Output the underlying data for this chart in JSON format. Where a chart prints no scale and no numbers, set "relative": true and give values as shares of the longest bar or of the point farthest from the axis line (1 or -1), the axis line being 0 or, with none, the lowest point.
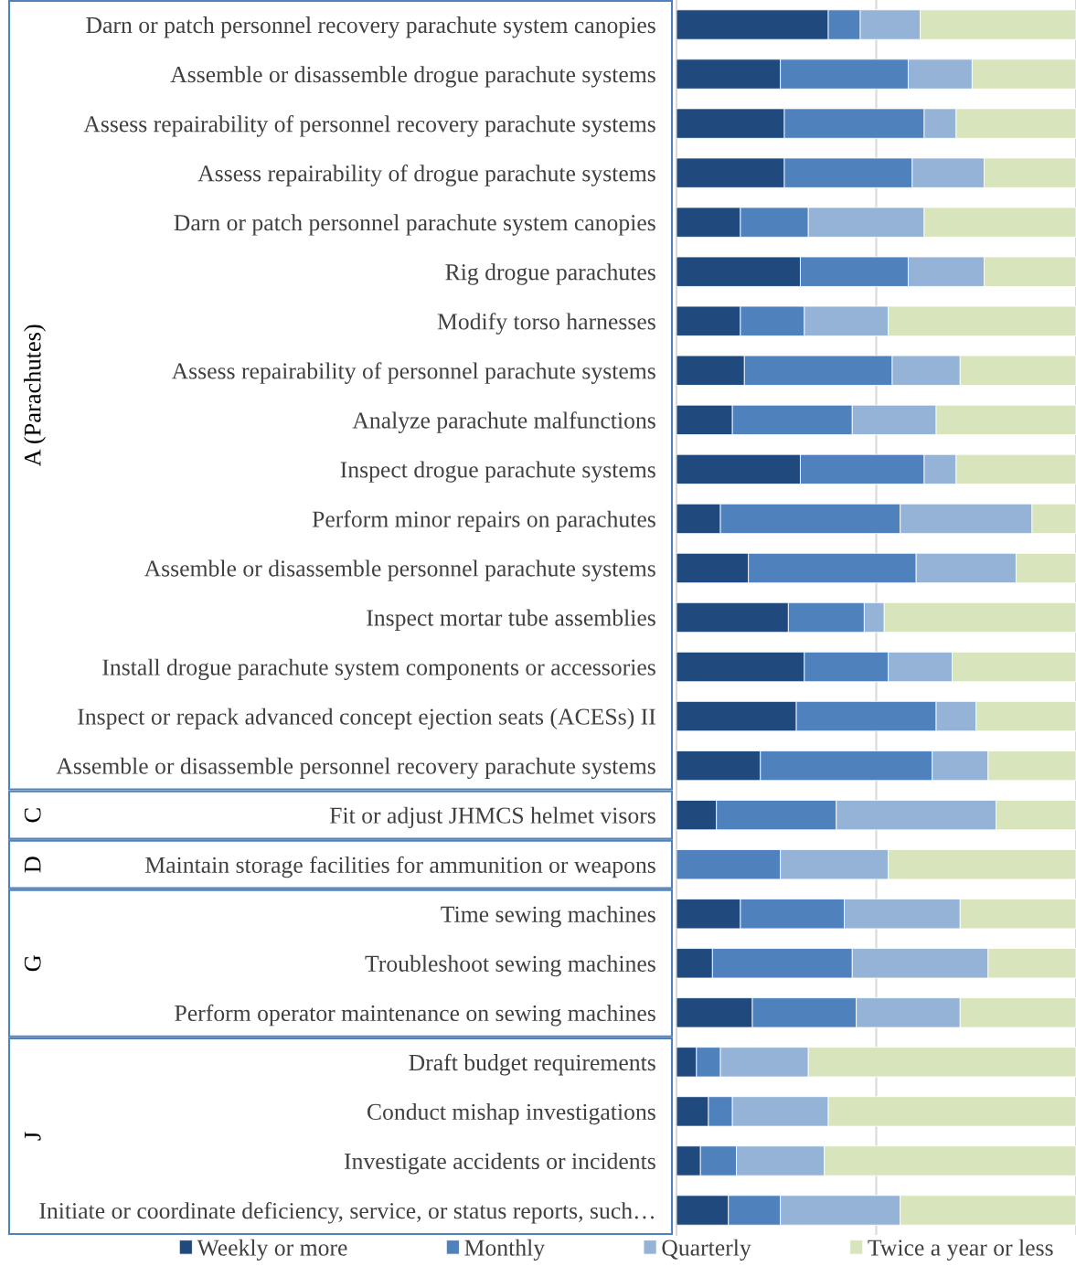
{
  "chart_data": {
    "type": "bar",
    "orientation": "horizontal",
    "stacked": true,
    "relative": true,
    "legend": "bottom",
    "categories": [
      "Darn or patch personnel recovery parachute system canopies",
      "Assemble or disassemble drogue parachute systems",
      "Assess repairability of personnel recovery parachute systems",
      "Assess repairability of drogue parachute systems",
      "Darn or patch personnel parachute system canopies",
      "Rig drogue parachutes",
      "Modify torso harnesses",
      "Assess repairability of personnel parachute systems",
      "Analyze parachute malfunctions",
      "Inspect drogue parachute systems",
      "Perform minor repairs on parachutes",
      "Assemble or disassemble personnel parachute systems",
      "Inspect mortar tube assemblies",
      "Install drogue parachute system components or accessories",
      "Inspect or repack advanced concept ejection seats (ACESs) II",
      "Assemble or disassemble personnel recovery parachute systems",
      "Fit or adjust JHMCS helmet visors",
      "Maintain storage facilities for ammunition or weapons",
      "Time sewing machines",
      "Troubleshoot sewing machines",
      "Perform operator maintenance on sewing machines",
      "Draft budget requirements",
      "Conduct mishap investigations",
      "Investigate accidents or incidents",
      "Initiate or coordinate deficiency, service, or status reports, such…"
    ],
    "series": [
      {
        "name": "Weekly or more",
        "color": "#204a7e",
        "values": [
          0.38,
          0.26,
          0.27,
          0.27,
          0.16,
          0.31,
          0.16,
          0.17,
          0.14,
          0.31,
          0.11,
          0.18,
          0.28,
          0.32,
          0.3,
          0.21,
          0.1,
          0,
          0.16,
          0.09,
          0.19,
          0.05,
          0.08,
          0.06,
          0.13
        ]
      },
      {
        "name": "Monthly",
        "color": "#4f81bd",
        "values": [
          0.08,
          0.32,
          0.35,
          0.32,
          0.17,
          0.27,
          0.16,
          0.37,
          0.3,
          0.31,
          0.45,
          0.42,
          0.19,
          0.21,
          0.35,
          0.43,
          0.3,
          0.26,
          0.26,
          0.35,
          0.26,
          0.06,
          0.06,
          0.09,
          0.13
        ]
      },
      {
        "name": "Quarterly",
        "color": "#95b3d7",
        "values": [
          0.15,
          0.16,
          0.08,
          0.18,
          0.29,
          0.19,
          0.21,
          0.17,
          0.21,
          0.08,
          0.33,
          0.25,
          0.05,
          0.16,
          0.1,
          0.14,
          0.4,
          0.27,
          0.29,
          0.34,
          0.26,
          0.22,
          0.24,
          0.22,
          0.3
        ]
      },
      {
        "name": "Twice a year or less",
        "color": "#d8e4bc",
        "values": [
          0.39,
          0.26,
          0.3,
          0.23,
          0.38,
          0.23,
          0.47,
          0.29,
          0.35,
          0.3,
          0.11,
          0.15,
          0.48,
          0.31,
          0.25,
          0.22,
          0.2,
          0.47,
          0.29,
          0.22,
          0.29,
          0.67,
          0.62,
          0.63,
          0.44
        ]
      }
    ],
    "ref_lines": [
      {
        "axis": "x",
        "value": 0.5,
        "color": "#d9d9d9"
      },
      {
        "axis": "x",
        "value": 1,
        "color": "#d9d9d9"
      }
    ],
    "annotations": [
      "A (Parachutes)",
      "C",
      "D",
      "G",
      "J"
    ]
  }
}
